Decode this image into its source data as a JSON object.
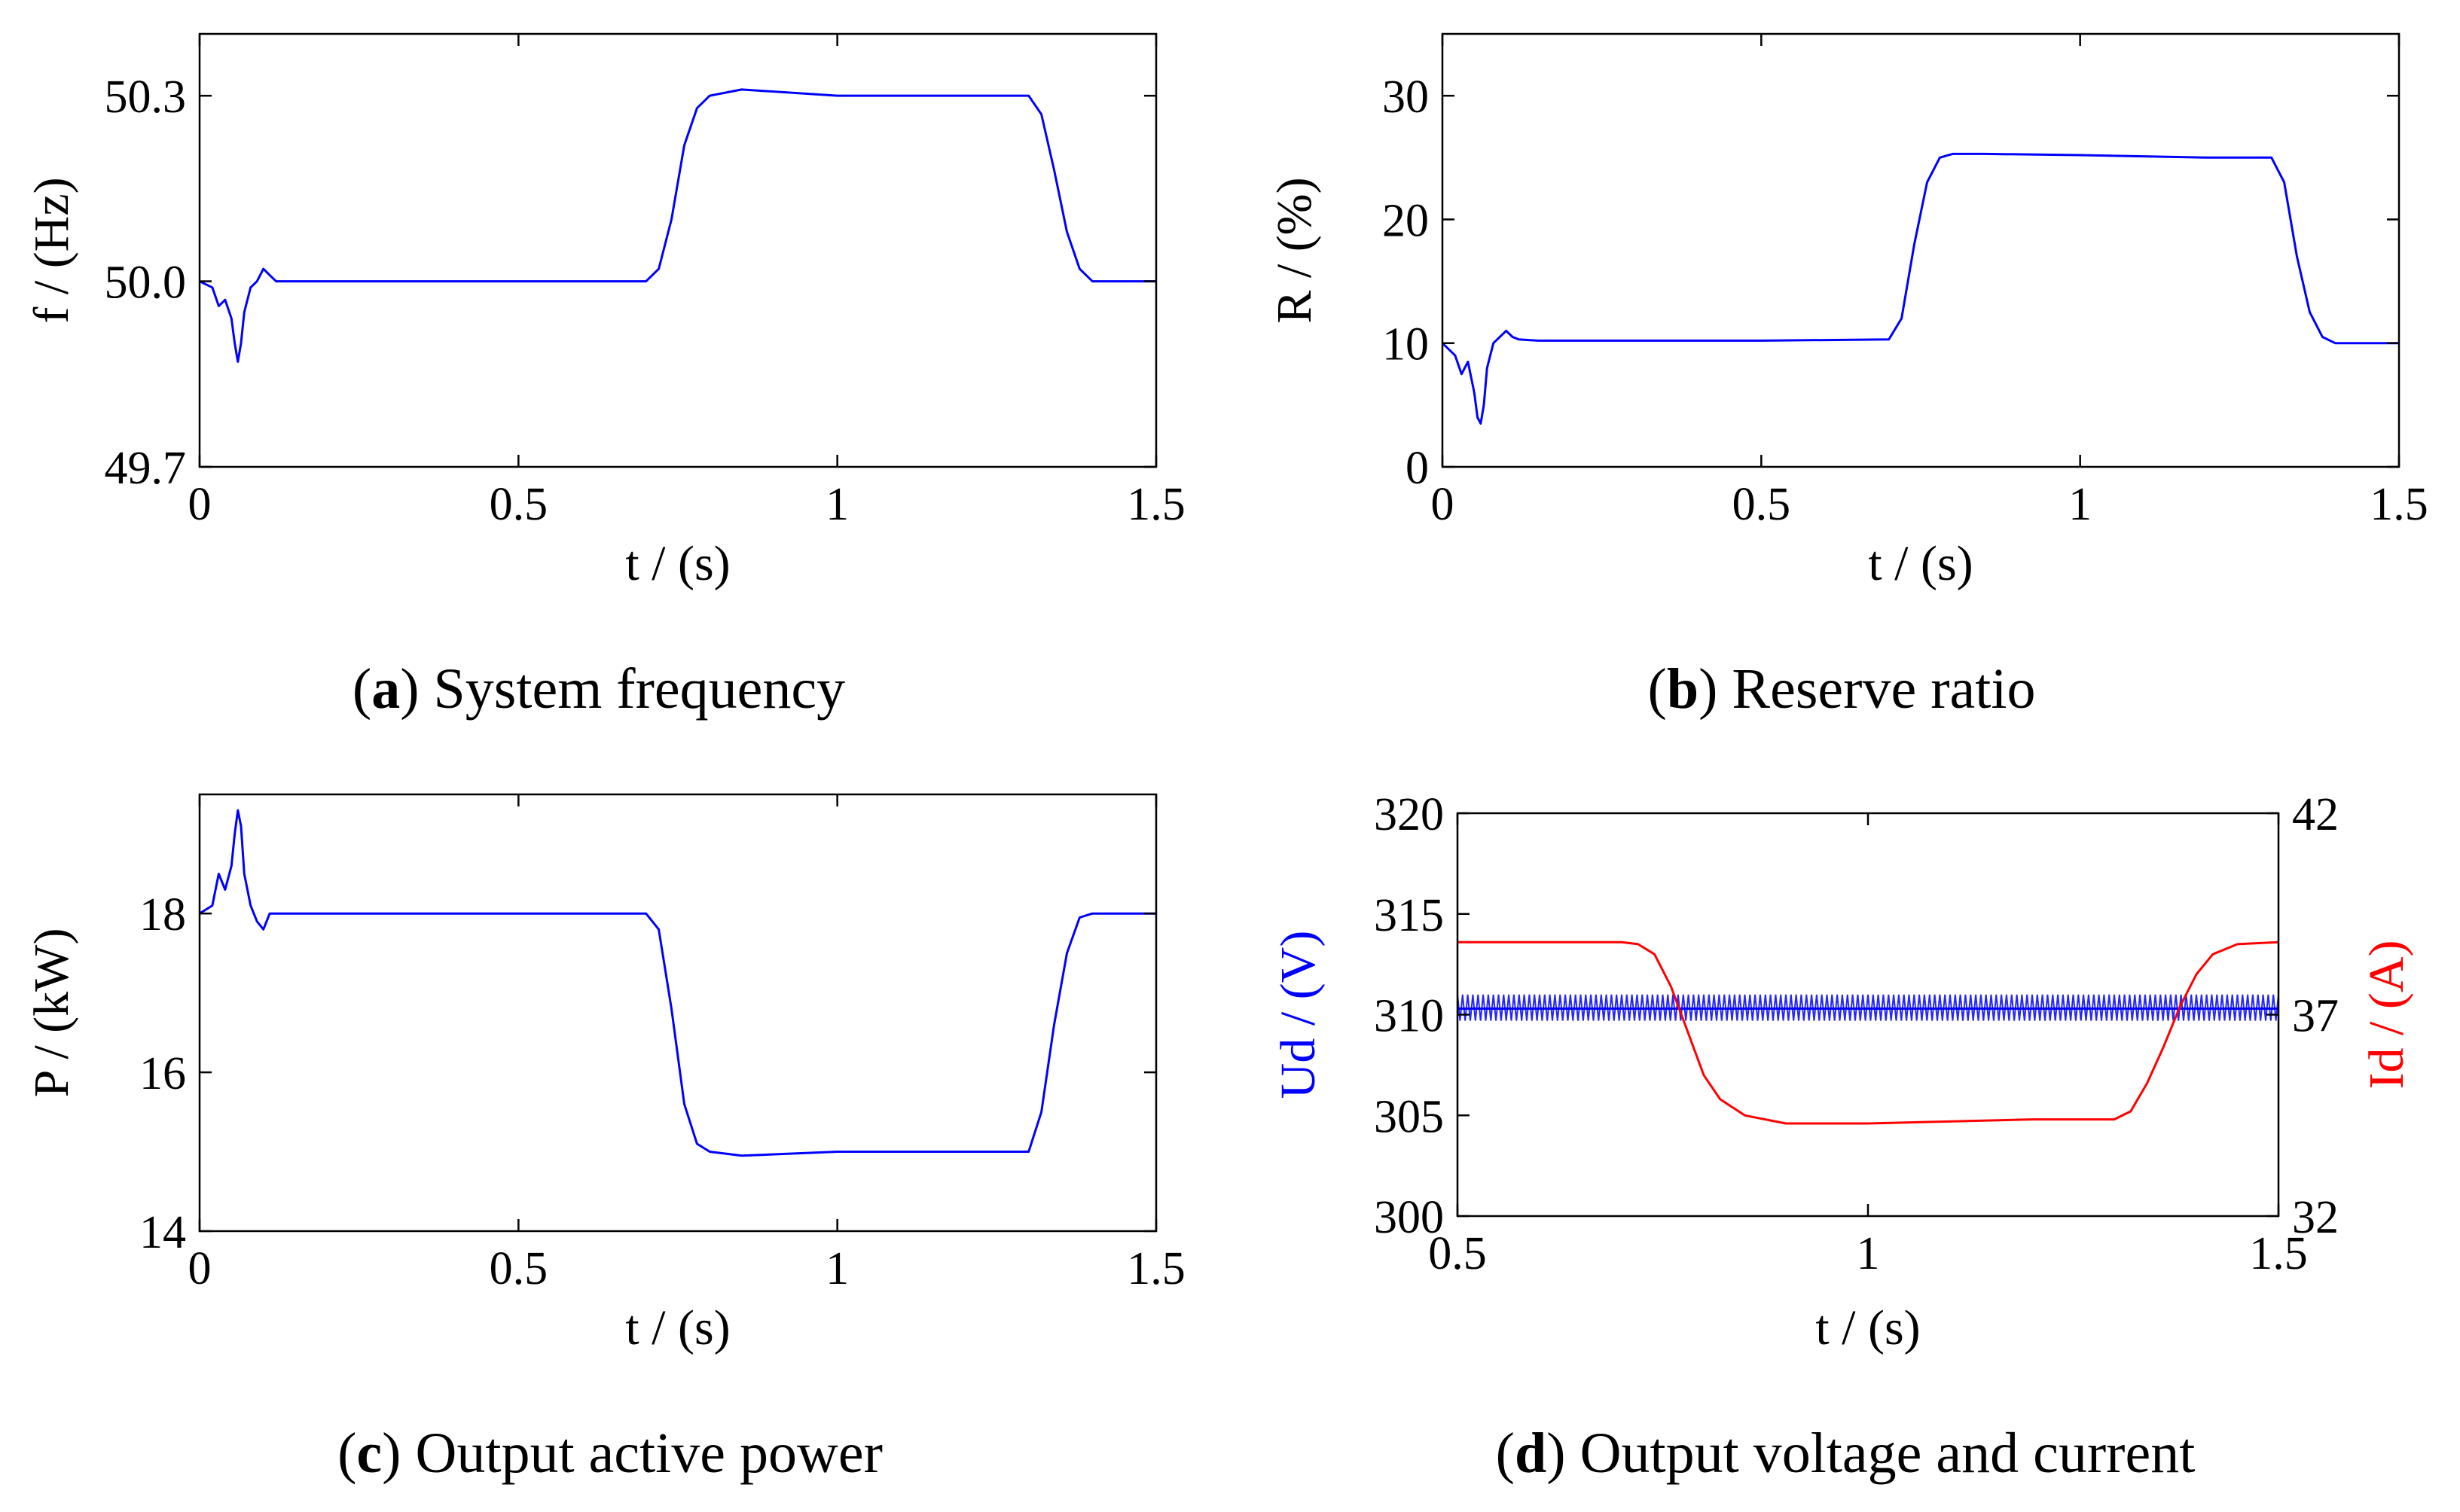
{
  "colors": {
    "blue": "#0000ff",
    "red": "#ff0000",
    "axis": "#000000"
  },
  "panels": [
    {
      "caption": {
        "letter": "a",
        "text": " System frequency",
        "open": "(",
        "close": ")"
      }
    },
    {
      "caption": {
        "letter": "b",
        "text": " Reserve ratio",
        "open": "(",
        "close": ")"
      }
    },
    {
      "caption": {
        "letter": "c",
        "text": " Output active power",
        "open": "(",
        "close": ")"
      }
    },
    {
      "caption": {
        "letter": "d",
        "text": " Output voltage and current",
        "open": "(",
        "close": ")"
      }
    }
  ],
  "chart_data": [
    {
      "id": "a",
      "type": "line",
      "xlabel": "t / (s)",
      "ylabel": "f / (Hz)",
      "xlim": [
        0,
        1.5
      ],
      "ylim": [
        49.7,
        50.4
      ],
      "xticks": [
        0,
        0.5,
        1,
        1.5
      ],
      "xtick_labels": [
        "0",
        "0.5",
        "1",
        "1.5"
      ],
      "yticks": [
        49.7,
        50.0,
        50.3
      ],
      "ytick_labels": [
        "49.7",
        "50.0",
        "50.3"
      ],
      "series": [
        {
          "name": "f",
          "color": "#0000ff",
          "x": [
            0,
            0.02,
            0.03,
            0.04,
            0.05,
            0.055,
            0.06,
            0.065,
            0.07,
            0.08,
            0.09,
            0.1,
            0.11,
            0.12,
            0.15,
            0.3,
            0.5,
            0.7,
            0.72,
            0.74,
            0.76,
            0.78,
            0.8,
            0.85,
            1.0,
            1.2,
            1.3,
            1.32,
            1.34,
            1.36,
            1.38,
            1.4,
            1.45,
            1.5
          ],
          "y": [
            50.0,
            49.99,
            49.96,
            49.97,
            49.94,
            49.9,
            49.87,
            49.9,
            49.95,
            49.99,
            50.0,
            50.02,
            50.01,
            50.0,
            50.0,
            50.0,
            50.0,
            50.0,
            50.02,
            50.1,
            50.22,
            50.28,
            50.3,
            50.31,
            50.3,
            50.3,
            50.3,
            50.27,
            50.18,
            50.08,
            50.02,
            50.0,
            50.0,
            50.0
          ]
        }
      ]
    },
    {
      "id": "b",
      "type": "line",
      "xlabel": "t / (s)",
      "ylabel": "R / (%)",
      "xlim": [
        0,
        1.5
      ],
      "ylim": [
        0,
        35
      ],
      "xticks": [
        0,
        0.5,
        1,
        1.5
      ],
      "xtick_labels": [
        "0",
        "0.5",
        "1",
        "1.5"
      ],
      "yticks": [
        0,
        10,
        20,
        30
      ],
      "ytick_labels": [
        "0",
        "10",
        "20",
        "30"
      ],
      "series": [
        {
          "name": "R",
          "color": "#0000ff",
          "x": [
            0,
            0.02,
            0.03,
            0.04,
            0.05,
            0.055,
            0.06,
            0.065,
            0.07,
            0.08,
            0.09,
            0.1,
            0.11,
            0.12,
            0.15,
            0.3,
            0.5,
            0.7,
            0.72,
            0.74,
            0.76,
            0.78,
            0.8,
            0.85,
            1.0,
            1.2,
            1.3,
            1.32,
            1.34,
            1.36,
            1.38,
            1.4,
            1.45,
            1.5
          ],
          "y": [
            10,
            9,
            7.5,
            8.5,
            6,
            4,
            3.5,
            5,
            8,
            10,
            10.5,
            11,
            10.5,
            10.3,
            10.2,
            10.2,
            10.2,
            10.3,
            12,
            18,
            23,
            25,
            25.3,
            25.3,
            25.2,
            25.0,
            25.0,
            23,
            17,
            12.5,
            10.5,
            10.0,
            10.0,
            10.0
          ]
        }
      ]
    },
    {
      "id": "c",
      "type": "line",
      "xlabel": "t / (s)",
      "ylabel": "P / (kW)",
      "xlim": [
        0,
        1.5
      ],
      "ylim": [
        14,
        19.5
      ],
      "xticks": [
        0,
        0.5,
        1,
        1.5
      ],
      "xtick_labels": [
        "0",
        "0.5",
        "1",
        "1.5"
      ],
      "yticks": [
        14,
        16,
        18
      ],
      "ytick_labels": [
        "14",
        "16",
        "18"
      ],
      "series": [
        {
          "name": "P",
          "color": "#0000ff",
          "x": [
            0,
            0.02,
            0.03,
            0.04,
            0.05,
            0.055,
            0.06,
            0.065,
            0.07,
            0.08,
            0.09,
            0.1,
            0.11,
            0.12,
            0.15,
            0.3,
            0.5,
            0.7,
            0.72,
            0.74,
            0.76,
            0.78,
            0.8,
            0.85,
            1.0,
            1.2,
            1.3,
            1.32,
            1.34,
            1.36,
            1.38,
            1.4,
            1.45,
            1.5
          ],
          "y": [
            18.0,
            18.1,
            18.5,
            18.3,
            18.6,
            19.0,
            19.3,
            19.1,
            18.5,
            18.1,
            17.9,
            17.8,
            18.0,
            18.0,
            18.0,
            18.0,
            18.0,
            18.0,
            17.8,
            16.8,
            15.6,
            15.1,
            15.0,
            14.95,
            15.0,
            15.0,
            15.0,
            15.5,
            16.6,
            17.5,
            17.95,
            18.0,
            18.0,
            18.0
          ]
        }
      ]
    },
    {
      "id": "d",
      "type": "line",
      "xlabel": "t / (s)",
      "ylabel": "Ud / (V)",
      "ylabel_right": "Id / (A)",
      "xlim": [
        0.5,
        1.5
      ],
      "ylim": [
        300,
        320
      ],
      "ylim_right": [
        32,
        42
      ],
      "xticks": [
        0.5,
        1,
        1.5
      ],
      "xtick_labels": [
        "0.5",
        "1",
        "1.5"
      ],
      "yticks": [
        300,
        305,
        310,
        315,
        320
      ],
      "ytick_labels": [
        "300",
        "305",
        "310",
        "315",
        "320"
      ],
      "yticks_right": [
        32,
        37,
        42
      ],
      "ytick_labels_right": [
        "32",
        "37",
        "42"
      ],
      "series": [
        {
          "name": "Ud",
          "axis": "left",
          "color": "#0000ff",
          "band": [
            309.7,
            311.0
          ],
          "x": [
            0.5,
            1.5
          ],
          "y": [
            310.3,
            310.3
          ]
        },
        {
          "name": "Id",
          "axis": "right",
          "color": "#ff0000",
          "x": [
            0.5,
            0.7,
            0.72,
            0.74,
            0.76,
            0.78,
            0.8,
            0.82,
            0.85,
            0.9,
            1.0,
            1.2,
            1.3,
            1.32,
            1.34,
            1.36,
            1.38,
            1.4,
            1.42,
            1.45,
            1.5
          ],
          "y": [
            38.8,
            38.8,
            38.75,
            38.5,
            37.7,
            36.6,
            35.5,
            34.9,
            34.5,
            34.3,
            34.3,
            34.4,
            34.4,
            34.6,
            35.3,
            36.2,
            37.2,
            38.0,
            38.5,
            38.75,
            38.8
          ]
        }
      ]
    }
  ]
}
